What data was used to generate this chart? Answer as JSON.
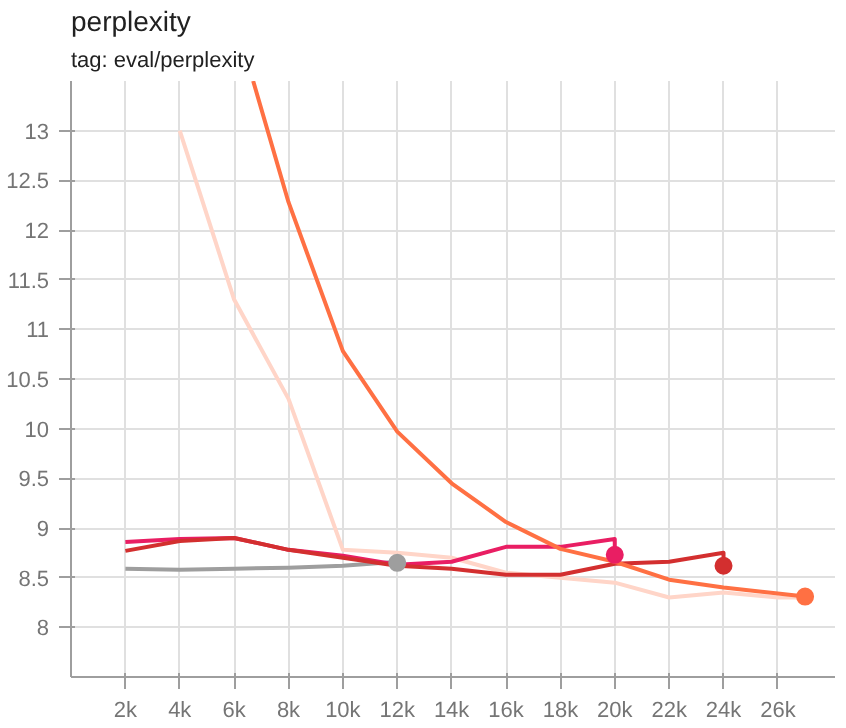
{
  "chart_data": {
    "type": "line",
    "title": "perplexity",
    "subtitle": "tag: eval/perplexity",
    "xlim": [
      0,
      28100
    ],
    "ylim": [
      7.5,
      13.5
    ],
    "xticks": [
      {
        "value": 2000,
        "label": "2k"
      },
      {
        "value": 4000,
        "label": "4k"
      },
      {
        "value": 6000,
        "label": "6k"
      },
      {
        "value": 8000,
        "label": "8k"
      },
      {
        "value": 10000,
        "label": "10k"
      },
      {
        "value": 12000,
        "label": "12k"
      },
      {
        "value": 14000,
        "label": "14k"
      },
      {
        "value": 16000,
        "label": "16k"
      },
      {
        "value": 18000,
        "label": "18k"
      },
      {
        "value": 20000,
        "label": "20k"
      },
      {
        "value": 22000,
        "label": "22k"
      },
      {
        "value": 24000,
        "label": "24k"
      },
      {
        "value": 26000,
        "label": "26k"
      }
    ],
    "yticks": [
      8,
      8.5,
      9,
      9.5,
      10,
      10.5,
      11,
      11.5,
      12,
      12.5,
      13
    ],
    "grid": true,
    "series": [
      {
        "color": "#ffd5c8",
        "x": [
          4000,
          6000,
          8000,
          10000,
          12000,
          14000,
          16000,
          18000,
          20000,
          22000,
          24000,
          26000,
          27000
        ],
        "values": [
          13.0,
          11.3,
          10.3,
          8.78,
          8.75,
          8.7,
          8.55,
          8.5,
          8.45,
          8.3,
          8.35,
          8.3,
          8.3
        ]
      },
      {
        "color": "#9e9e9e",
        "x": [
          2000,
          4000,
          6000,
          8000,
          10000,
          12000
        ],
        "values": [
          8.59,
          8.58,
          8.59,
          8.6,
          8.62,
          8.66
        ]
      },
      {
        "color": "#e91e63",
        "x": [
          2000,
          4000,
          6000,
          8000,
          10000,
          12000,
          14000,
          16000,
          18000,
          20000,
          20000
        ],
        "values": [
          8.86,
          8.89,
          8.9,
          8.78,
          8.72,
          8.63,
          8.66,
          8.81,
          8.81,
          8.89,
          8.73
        ]
      },
      {
        "color": "#d32f2f",
        "x": [
          2000,
          4000,
          6000,
          8000,
          10000,
          12000,
          14000,
          16000,
          18000,
          20000,
          22000,
          24000,
          24000
        ],
        "values": [
          8.77,
          8.87,
          8.9,
          8.78,
          8.7,
          8.62,
          8.59,
          8.53,
          8.53,
          8.64,
          8.66,
          8.75,
          8.62
        ]
      },
      {
        "color": "#ff7043",
        "x": [
          6700,
          8000,
          10000,
          12000,
          14000,
          16000,
          18000,
          20000,
          22000,
          24000,
          27000
        ],
        "values": [
          13.5,
          12.28,
          10.78,
          9.97,
          9.45,
          9.06,
          8.79,
          8.66,
          8.48,
          8.4,
          8.31
        ]
      },
      {
        "type": "scatter",
        "marker": "circle",
        "x": [
          12000,
          20000,
          24000,
          27000
        ],
        "values": [
          8.65,
          8.73,
          8.62,
          8.31
        ],
        "colors": [
          "#9e9e9e",
          "#e91e63",
          "#d32f2f",
          "#ff7043"
        ]
      }
    ]
  }
}
